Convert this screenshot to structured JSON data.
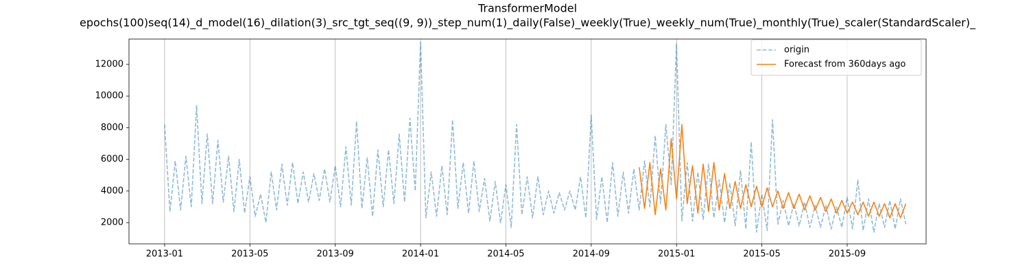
{
  "chart_data": {
    "type": "line",
    "title": "TransformerModel",
    "subtitle": "epochs(100)seq(14)_d_model(16)_dilation(3)_src_tgt_seq((9, 9))_step_num(1)_daily(False)_weekly(True)_weekly_num(True)_monthly(True)_scaler(StandardScaler)_",
    "xlim": [
      -1.67,
      35.7
    ],
    "ylim": [
      660,
      13600
    ],
    "xticks": [
      {
        "value": 0,
        "label": "2013-01"
      },
      {
        "value": 4,
        "label": "2013-05"
      },
      {
        "value": 8,
        "label": "2013-09"
      },
      {
        "value": 12,
        "label": "2014-01"
      },
      {
        "value": 16,
        "label": "2014-05"
      },
      {
        "value": 20,
        "label": "2014-09"
      },
      {
        "value": 24,
        "label": "2015-01"
      },
      {
        "value": 28,
        "label": "2015-05"
      },
      {
        "value": 32,
        "label": "2015-09"
      }
    ],
    "yticks": [
      2000,
      4000,
      6000,
      8000,
      10000,
      12000
    ],
    "grid": "x",
    "legend": "upper right",
    "series": [
      {
        "name": "origin",
        "color": "#1f77b4",
        "opacity": 0.5,
        "dashed": true,
        "x": [
          0,
          0.25,
          0.5,
          0.75,
          1,
          1.25,
          1.5,
          1.75,
          2,
          2.25,
          2.5,
          2.75,
          3,
          3.25,
          3.5,
          3.75,
          4,
          4.25,
          4.5,
          4.75,
          5,
          5.25,
          5.5,
          5.75,
          6,
          6.25,
          6.5,
          6.75,
          7,
          7.25,
          7.5,
          7.75,
          8,
          8.25,
          8.5,
          8.75,
          9,
          9.25,
          9.5,
          9.75,
          10,
          10.25,
          10.5,
          10.75,
          11,
          11.25,
          11.5,
          11.75,
          12,
          12.25,
          12.5,
          12.75,
          13,
          13.25,
          13.5,
          13.75,
          14,
          14.25,
          14.5,
          14.75,
          15,
          15.25,
          15.5,
          15.75,
          16,
          16.25,
          16.5,
          16.75,
          17,
          17.25,
          17.5,
          17.75,
          18,
          18.25,
          18.5,
          18.75,
          19,
          19.25,
          19.5,
          19.75,
          20,
          20.25,
          20.5,
          20.75,
          21,
          21.25,
          21.5,
          21.75,
          22,
          22.25,
          22.5,
          22.75,
          23,
          23.25,
          23.5,
          23.75,
          24,
          24.25,
          24.5,
          24.75,
          25,
          25.25,
          25.5,
          25.75,
          26,
          26.25,
          26.5,
          26.75,
          27,
          27.25,
          27.5,
          27.75,
          28,
          28.25,
          28.5,
          28.75,
          29,
          29.25,
          29.5,
          29.75,
          30,
          30.25,
          30.5,
          30.75,
          31,
          31.25,
          31.5,
          31.75,
          32,
          32.25,
          32.5,
          32.75,
          33,
          33.25,
          33.5,
          33.75,
          34,
          34.25,
          34.5,
          34.75
        ],
        "values": [
          8200,
          2700,
          5900,
          2800,
          6200,
          3000,
          9400,
          3200,
          7600,
          3200,
          7200,
          3300,
          6200,
          2700,
          6000,
          2600,
          4900,
          2400,
          3800,
          2000,
          5200,
          2800,
          5700,
          3100,
          5800,
          3200,
          5200,
          3300,
          5100,
          3400,
          5400,
          3300,
          5600,
          3000,
          6800,
          3100,
          8400,
          2900,
          6100,
          2400,
          6600,
          3000,
          6600,
          3200,
          7600,
          3300,
          8600,
          4000,
          13400,
          2300,
          5200,
          2400,
          5600,
          2500,
          8500,
          2900,
          5800,
          2600,
          5900,
          2700,
          4800,
          2100,
          4600,
          2000,
          4400,
          1700,
          8200,
          2500,
          4900,
          2300,
          4900,
          2500,
          4000,
          2600,
          3900,
          2800,
          4000,
          2800,
          4900,
          2300,
          8800,
          2200,
          4900,
          2000,
          5800,
          2400,
          5200,
          2600,
          5400,
          2800,
          5900,
          3000,
          7500,
          3200,
          8200,
          4400,
          13300,
          2100,
          5800,
          2100,
          5200,
          2200,
          5700,
          2300,
          4700,
          2000,
          4500,
          1800,
          5300,
          1600,
          7100,
          1400,
          3800,
          1500,
          8500,
          1900,
          3400,
          1800,
          3200,
          1800,
          3300,
          1700,
          3100,
          1700,
          3100,
          1600,
          3000,
          1700,
          3600,
          1600,
          4700,
          1500,
          3500,
          1400,
          3200,
          1700,
          3400,
          1600,
          3500,
          1900
        ]
      },
      {
        "name": "Forecast from 360days ago",
        "color": "#ff7f0e",
        "opacity": 1,
        "dashed": false,
        "x": [
          22.25,
          22.5,
          22.75,
          23,
          23.25,
          23.5,
          23.75,
          24,
          24.25,
          24.5,
          24.75,
          25,
          25.25,
          25.5,
          25.75,
          26,
          26.25,
          26.5,
          26.75,
          27,
          27.25,
          27.5,
          27.75,
          28,
          28.25,
          28.5,
          28.75,
          29,
          29.25,
          29.5,
          29.75,
          30,
          30.25,
          30.5,
          30.75,
          31,
          31.25,
          31.5,
          31.75,
          32,
          32.25,
          32.5,
          32.75,
          33,
          33.25,
          33.5,
          33.75,
          34,
          34.25,
          34.5,
          34.75
        ],
        "values": [
          5500,
          2900,
          5800,
          2500,
          5400,
          2800,
          7300,
          3500,
          8200,
          3200,
          5600,
          2600,
          5700,
          2700,
          5800,
          2800,
          5100,
          2900,
          4600,
          2900,
          4400,
          3000,
          4300,
          3000,
          4200,
          3000,
          4000,
          2900,
          3900,
          2900,
          3800,
          2800,
          3700,
          2800,
          3600,
          2700,
          3500,
          2600,
          3400,
          2600,
          3300,
          2500,
          3300,
          2400,
          3300,
          2400,
          3200,
          2300,
          3200,
          2300,
          3200
        ]
      }
    ]
  }
}
